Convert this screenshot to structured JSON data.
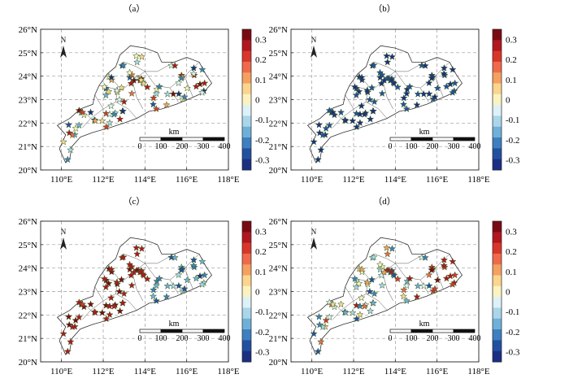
{
  "colorbar": {
    "ticks": [
      "0.3",
      "0.2",
      "0.1",
      "0",
      "-0.1",
      "-0.2",
      "-0.3"
    ],
    "colors": [
      "#7a0a12",
      "#b2161f",
      "#d9362b",
      "#ef6a4a",
      "#f5a060",
      "#fbd58e",
      "#fbf2c0",
      "#ddf1f7",
      "#a9d6ea",
      "#6fb0d8",
      "#3d7fc0",
      "#2250a0",
      "#1a2f84"
    ],
    "range": [
      -0.35,
      0.35
    ]
  },
  "axes": {
    "x_ticks": [
      "110°E",
      "112°E",
      "114°E",
      "116°E",
      "118°E"
    ],
    "y_ticks": [
      "26°N",
      "25°N",
      "24°N",
      "23°N",
      "22°N",
      "21°N",
      "20°N"
    ],
    "x_range": [
      109,
      118
    ],
    "y_range": [
      20,
      26
    ]
  },
  "north_arrow_label": "N",
  "scale_bar": {
    "unit": "km",
    "labels": [
      "0",
      "100",
      "200",
      "300",
      "400"
    ]
  },
  "panels": [
    {
      "label": "（a）",
      "pattern": "mixed"
    },
    {
      "label": "（b）",
      "pattern": "negative"
    },
    {
      "label": "（c）",
      "pattern": "positive-west"
    },
    {
      "label": "（d）",
      "pattern": "mixed-east"
    }
  ]
}
